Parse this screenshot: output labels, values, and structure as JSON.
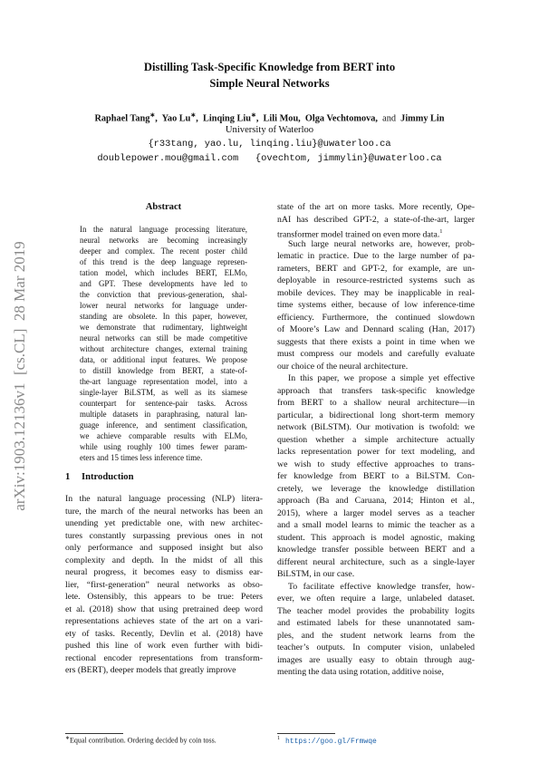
{
  "header": {
    "title_lines": [
      "Distilling Task-Specific Knowledge from BERT into",
      "Simple Neural Networks"
    ],
    "authors": [
      {
        "text": "Raphael Tang"
      },
      {
        "text": "∗",
        "sup": true
      },
      {
        "text": ",  Yao Lu"
      },
      {
        "text": "∗",
        "sup": true
      },
      {
        "text": ",  Linqing Liu"
      },
      {
        "text": "∗",
        "sup": true
      },
      {
        "text": ",  Lili Mou,  Olga Vechtomova,  "
      },
      {
        "text": "and",
        "plain": true
      },
      {
        "text": "  Jimmy Lin"
      }
    ],
    "affiliation": "University of Waterloo",
    "emails": [
      "{r33tang, yao.lu, linqing.liu}@uwaterloo.ca",
      "doublepower.mou@gmail.com   {ovechtom, jimmylin}@uwaterloo.ca"
    ]
  },
  "arxiv_stamp": "arXiv:1903.12136v1  [cs.CL]  28 Mar 2019",
  "abstract": {
    "heading": "Abstract",
    "lines": [
      "In the natural language processing literature,",
      "neural networks are becoming increasingly",
      "deeper and complex. The recent poster child",
      "of this trend is the deep language represen-",
      "tation model, which includes BERT, ELMo,",
      "and GPT. These developments have led to",
      "the conviction that previous-generation, shal-",
      "lower neural networks for language under-",
      "standing are obsolete. In this paper, however,",
      "we demonstrate that rudimentary, lightweight",
      "neural networks can still be made competitive",
      "without architecture changes, external training",
      "data, or additional input features. We propose",
      "to distill knowledge from BERT, a state-of-",
      "the-art language representation model, into a",
      "single-layer BiLSTM, as well as its siamese",
      "counterpart for sentence-pair tasks. Across",
      "multiple datasets in paraphrasing, natural lan-",
      "guage inference, and sentiment classification,",
      "we achieve comparable results with ELMo,",
      "while using roughly 100 times fewer param-",
      "eters and 15 times less inference time."
    ]
  },
  "section": {
    "number": "1",
    "title": "Introduction"
  },
  "left_column": {
    "paragraphs": [
      {
        "indent": false,
        "lines": [
          "In the natural language processing (NLP) litera-",
          "ture, the march of the neural networks has been an",
          "unending yet predictable one, with new architec-",
          "tures constantly surpassing previous ones in not",
          "only performance and supposed insight but also",
          "complexity and depth. In the midst of all this",
          "neural progress, it becomes easy to dismiss ear-",
          "lier, “first-generation” neural networks as obso-",
          "lete. Ostensibly, this appears to be true: Peters",
          "et al. (2018) show that using pretrained deep word",
          "representations achieves state of the art on a vari-",
          "ety of tasks. Recently, Devlin et al. (2018) have",
          "pushed this line of work even further with bidi-",
          "rectional encoder representations from transform-",
          "ers (BERT), deeper models that greatly improve"
        ]
      }
    ],
    "footnote": {
      "mark": "∗",
      "text": "Equal contribution. Ordering decided by coin toss."
    }
  },
  "right_column": {
    "paragraphs": [
      {
        "indent": false,
        "lines": [
          "state of the art on more tasks. More recently, Ope-",
          "nAI has described GPT-2, a state-of-the-art, larger",
          "transformer model trained on even more data."
        ]
      },
      {
        "indent": true,
        "lines": [
          "Such large neural networks are, however, prob-",
          "lematic in practice. Due to the large number of pa-",
          "rameters, BERT and GPT-2, for example, are un-",
          "deployable in resource-restricted systems such as",
          "mobile devices. They may be inapplicable in real-",
          "time systems either, because of low inference-time",
          "efficiency. Furthermore, the continued slowdown",
          "of Moore’s Law and Dennard scaling (Han, 2017)",
          "suggests that there exists a point in time when we",
          "must compress our models and carefully evaluate",
          "our choice of the neural architecture."
        ]
      },
      {
        "indent": true,
        "lines": [
          "In this paper, we propose a simple yet effective",
          "approach that transfers task-specific knowledge",
          "from BERT to a shallow neural architecture—in",
          "particular, a bidirectional long short-term memory",
          "network (BiLSTM). Our motivation is twofold: we",
          "question whether a simple architecture actually",
          "lacks representation power for text modeling, and",
          "we wish to study effective approaches to trans-",
          "fer knowledge from BERT to a BiLSTM. Con-",
          "cretely, we leverage the knowledge distillation",
          "approach (Ba and Caruana, 2014; Hinton et al.,",
          "2015), where a larger model serves as a teacher",
          "and a small model learns to mimic the teacher as a",
          "student. This approach is model agnostic, making",
          "knowledge transfer possible between BERT and a",
          "different neural architecture, such as a single-layer",
          "BiLSTM, in our case."
        ]
      },
      {
        "indent": true,
        "lines": [
          "To facilitate effective knowledge transfer, how-",
          "ever, we often require a large, unlabeled dataset.",
          "The teacher model provides the probability logits",
          "and estimated labels for these unannotated sam-",
          "ples, and the student network learns from the",
          "teacher’s outputs. In computer vision, unlabeled",
          "images are usually easy to obtain through aug-",
          "menting the data using rotation, additive noise,"
        ]
      }
    ],
    "footnote_ref": "1",
    "footnote": {
      "mark": "1",
      "text": "https://goo.gl/Frmwqe"
    }
  }
}
